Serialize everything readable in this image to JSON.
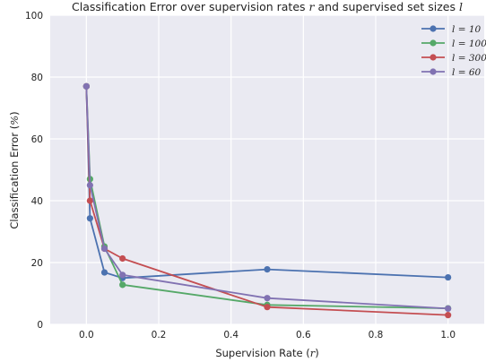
{
  "chart_data": {
    "type": "line",
    "title": "Classification Error over supervision rates r and supervised set sizes l",
    "title_parts": [
      "Classification Error over supervision rates ",
      "r",
      " and supervised set sizes ",
      "l"
    ],
    "xlabel": "Supervision Rate (r)",
    "xlabel_parts": [
      "Supervision Rate (",
      "r",
      ")"
    ],
    "ylabel": "Classification Error (%)",
    "ylabel_parts": [
      "Classification Error (",
      "%",
      ")"
    ],
    "xlim": [
      -0.1,
      1.1
    ],
    "ylim": [
      0,
      100
    ],
    "xticks": [
      0.0,
      0.2,
      0.4,
      0.6,
      0.8,
      1.0
    ],
    "xtick_labels": [
      "0.0",
      "0.2",
      "0.4",
      "0.6",
      "0.8",
      "1.0"
    ],
    "yticks": [
      0,
      20,
      40,
      60,
      80,
      100
    ],
    "ytick_labels": [
      "0",
      "20",
      "40",
      "60",
      "80",
      "100"
    ],
    "grid": true,
    "legend_position": "top-right",
    "background": "#eaeaf2",
    "series": [
      {
        "name": "l = 10",
        "color": "#4c72b0",
        "x": [
          0.0,
          0.01,
          0.05,
          0.1,
          0.5,
          1.0
        ],
        "y": [
          77,
          34.3,
          16.8,
          15.0,
          17.8,
          15.2
        ]
      },
      {
        "name": "l = 100",
        "color": "#55a868",
        "x": [
          0.0,
          0.01,
          0.05,
          0.1,
          0.5,
          1.0
        ],
        "y": [
          77,
          47.0,
          25.2,
          12.8,
          6.3,
          5.2
        ]
      },
      {
        "name": "l = 300",
        "color": "#c44e52",
        "x": [
          0.0,
          0.01,
          0.05,
          0.1,
          0.5,
          1.0
        ],
        "y": [
          77,
          40.0,
          24.5,
          21.3,
          5.6,
          3.0
        ]
      },
      {
        "name": "l = 60",
        "color": "#8172b2",
        "x": [
          0.0,
          0.01,
          0.05,
          0.1,
          0.5,
          1.0
        ],
        "y": [
          77,
          45.0,
          24.5,
          16.0,
          8.5,
          5.1
        ]
      }
    ]
  }
}
